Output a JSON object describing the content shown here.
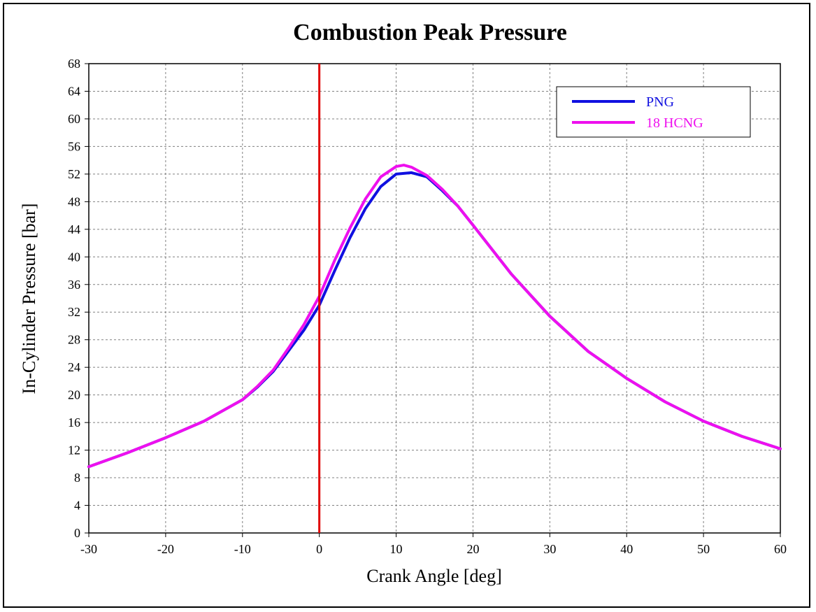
{
  "chart_data": {
    "type": "line",
    "title": "Combustion Peak Pressure",
    "xlabel": "Crank Angle [deg]",
    "ylabel": "In-Cylinder Pressure [bar]",
    "xlim": [
      -30,
      60
    ],
    "ylim": [
      0,
      68
    ],
    "xticks": [
      -30,
      -20,
      -10,
      0,
      10,
      20,
      30,
      40,
      50,
      60
    ],
    "yticks": [
      0,
      4,
      8,
      12,
      16,
      20,
      24,
      28,
      32,
      36,
      40,
      44,
      48,
      52,
      56,
      60,
      64,
      68
    ],
    "grid": true,
    "legend_position": "top-right",
    "reference_line": {
      "x": 0,
      "color": "#e00000"
    },
    "series": [
      {
        "name": "PNG",
        "color": "#1010e0",
        "x": [
          -30,
          -25,
          -20,
          -15,
          -10,
          -8,
          -6,
          -4,
          -2,
          0,
          2,
          4,
          6,
          8,
          10,
          12,
          14,
          16,
          18,
          20,
          25,
          30,
          35,
          40,
          45,
          50,
          55,
          60
        ],
        "y": [
          9.6,
          11.6,
          13.8,
          16.2,
          19.3,
          21.2,
          23.4,
          26.4,
          29.4,
          33.0,
          38.0,
          42.8,
          47.0,
          50.2,
          52.0,
          52.2,
          51.6,
          49.6,
          47.4,
          44.6,
          37.5,
          31.4,
          26.3,
          22.4,
          19.0,
          16.2,
          14.0,
          12.2
        ]
      },
      {
        "name": "18 HCNG",
        "color": "#ee10ee",
        "x": [
          -30,
          -25,
          -20,
          -15,
          -10,
          -8,
          -6,
          -4,
          -2,
          0,
          2,
          4,
          6,
          8,
          10,
          11,
          12,
          14,
          16,
          18,
          20,
          25,
          30,
          35,
          40,
          45,
          50,
          55,
          60
        ],
        "y": [
          9.6,
          11.6,
          13.8,
          16.2,
          19.3,
          21.3,
          23.6,
          26.8,
          30.2,
          34.3,
          39.5,
          44.2,
          48.4,
          51.6,
          53.1,
          53.3,
          53.0,
          51.8,
          49.8,
          47.4,
          44.6,
          37.5,
          31.4,
          26.3,
          22.4,
          19.0,
          16.2,
          14.0,
          12.2
        ]
      }
    ]
  }
}
